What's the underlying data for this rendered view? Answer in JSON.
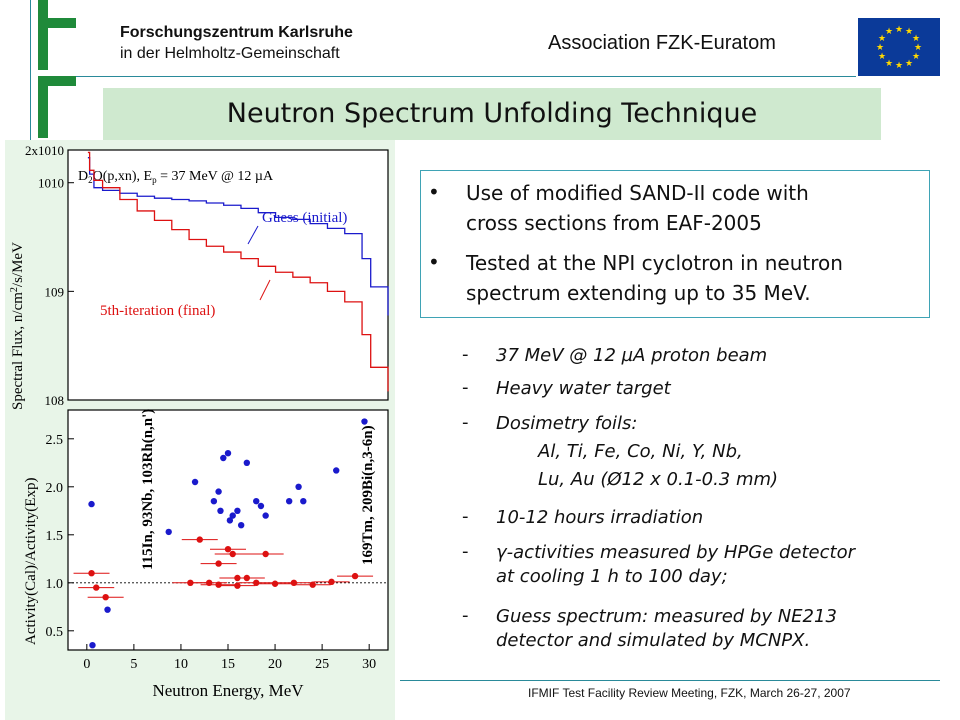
{
  "header": {
    "institution_line1": "Forschungszentrum Karlsruhe",
    "institution_line2": "in der Helmholtz-Gemeinschaft",
    "association": "Association FZK-Euratom"
  },
  "title": "Neutron Spectrum Unfolding Technique",
  "bullets": [
    {
      "line1": "Use of modified SAND-II code with",
      "line2": "cross sections from EAF-2005"
    },
    {
      "line1": "Tested at the NPI cyclotron in neutron",
      "line2": "spectrum extending up to 35 MeV."
    }
  ],
  "items": [
    {
      "lines": [
        "37 MeV @ 12 µA proton beam"
      ]
    },
    {
      "lines": [
        "Heavy water target"
      ]
    },
    {
      "lines": [
        "Dosimetry foils:",
        "Al, Ti, Fe, Co, Ni, Y, Nb,",
        "Lu, Au (Ø12 x 0.1-0.3 mm)"
      ]
    },
    {
      "lines": [
        "10-12 hours irradiation"
      ]
    },
    {
      "lines": [
        "γ-activities measured by HPGe detector",
        "at cooling 1 h to 100 day;"
      ]
    },
    {
      "lines": [
        "Guess spectrum: measured by NE213",
        "detector and simulated by MCNPX."
      ]
    }
  ],
  "footer": "IFMIF Test Facility Review Meeting, FZK, March 26-27, 2007",
  "colors": {
    "green_bar": "#1f8a3a",
    "title_bg": "#cfe9cf",
    "guess": "#1a1acc",
    "final": "#dd1111"
  },
  "chart_data": [
    {
      "type": "line",
      "annotation": "D2O(p,xn), Ep = 37 MeV @ 12 µA",
      "ylabel": "Spectral Flux, n/cm2/s/MeV",
      "yscale": "log",
      "ylim": [
        100000000.0,
        20000000000.0
      ],
      "ytick_labels": [
        "10^8",
        "10^9",
        "10^10",
        "2x10^10"
      ],
      "series": [
        {
          "name": "Guess (initial)",
          "x": [
            0.3,
            0.5,
            1,
            2,
            4,
            6,
            8,
            10,
            12,
            14,
            16,
            18,
            20,
            22,
            24,
            26,
            28,
            30,
            32,
            33,
            35
          ],
          "y": [
            17000000000.0,
            12000000000.0,
            9000000000.0,
            8500000000.0,
            8000000000.0,
            7500000000.0,
            7200000000.0,
            7000000000.0,
            6800000000.0,
            6500000000.0,
            6200000000.0,
            5800000000.0,
            5300000000.0,
            4800000000.0,
            4600000000.0,
            4200000000.0,
            3800000000.0,
            3400000000.0,
            2000000000.0,
            1100000000.0,
            600000000.0
          ]
        },
        {
          "name": "5th-iteration (final)",
          "x": [
            0.3,
            0.5,
            1,
            2,
            4,
            6,
            8,
            10,
            12,
            14,
            16,
            18,
            20,
            22,
            24,
            26,
            28,
            30,
            32,
            33,
            35
          ],
          "y": [
            19000000000.0,
            13000000000.0,
            10500000000.0,
            9000000000.0,
            7000000000.0,
            5500000000.0,
            4500000000.0,
            3700000000.0,
            3000000000.0,
            2600000000.0,
            2300000000.0,
            2000000000.0,
            1700000000.0,
            1500000000.0,
            1350000000.0,
            1200000000.0,
            1000000000.0,
            800000000.0,
            400000000.0,
            200000000.0,
            120000000.0
          ]
        }
      ]
    },
    {
      "type": "scatter",
      "xlabel": "Neutron Energy, MeV",
      "ylabel": "Activity(Cal)/Activity(Exp)",
      "xlim": [
        -2,
        32
      ],
      "ylim": [
        0.3,
        2.8
      ],
      "xticks": [
        0,
        5,
        10,
        15,
        20,
        25,
        30
      ],
      "yticks": [
        0.5,
        1.0,
        1.5,
        2.0,
        2.5
      ],
      "rotated_labels": [
        "115In, 93Nb, 103Rh(n,n')",
        "169Tm, 209Bi(n,3-6n)"
      ],
      "guess_points": [
        [
          0.5,
          1.82
        ],
        [
          2.2,
          0.72
        ],
        [
          0.6,
          0.35
        ],
        [
          8.7,
          1.53
        ],
        [
          11.5,
          2.05
        ],
        [
          13.5,
          1.85
        ],
        [
          14,
          1.95
        ],
        [
          14.5,
          2.3
        ],
        [
          15,
          2.35
        ],
        [
          15.5,
          1.7
        ],
        [
          16,
          1.75
        ],
        [
          17,
          2.25
        ],
        [
          18,
          1.85
        ],
        [
          18.5,
          1.8
        ],
        [
          19,
          1.7
        ],
        [
          21.5,
          1.85
        ],
        [
          22.5,
          2.0
        ],
        [
          23,
          1.85
        ],
        [
          26.5,
          2.17
        ],
        [
          29.5,
          2.68
        ],
        [
          14.2,
          1.75
        ],
        [
          15.2,
          1.65
        ],
        [
          16.4,
          1.6
        ]
      ],
      "final_points": [
        [
          0.5,
          1.1
        ],
        [
          1,
          0.95
        ],
        [
          2,
          0.85
        ],
        [
          12,
          1.45
        ],
        [
          14,
          1.2
        ],
        [
          15,
          1.35
        ],
        [
          15.5,
          1.3
        ],
        [
          16,
          1.05
        ],
        [
          17,
          1.05
        ],
        [
          19,
          1.3
        ],
        [
          28.5,
          1.07
        ],
        [
          11,
          1.0
        ],
        [
          13,
          1.0
        ],
        [
          14,
          0.98
        ],
        [
          16,
          0.97
        ],
        [
          18,
          1.0
        ],
        [
          20,
          0.99
        ],
        [
          22,
          1.0
        ],
        [
          24,
          0.98
        ],
        [
          26,
          1.01
        ]
      ]
    }
  ]
}
